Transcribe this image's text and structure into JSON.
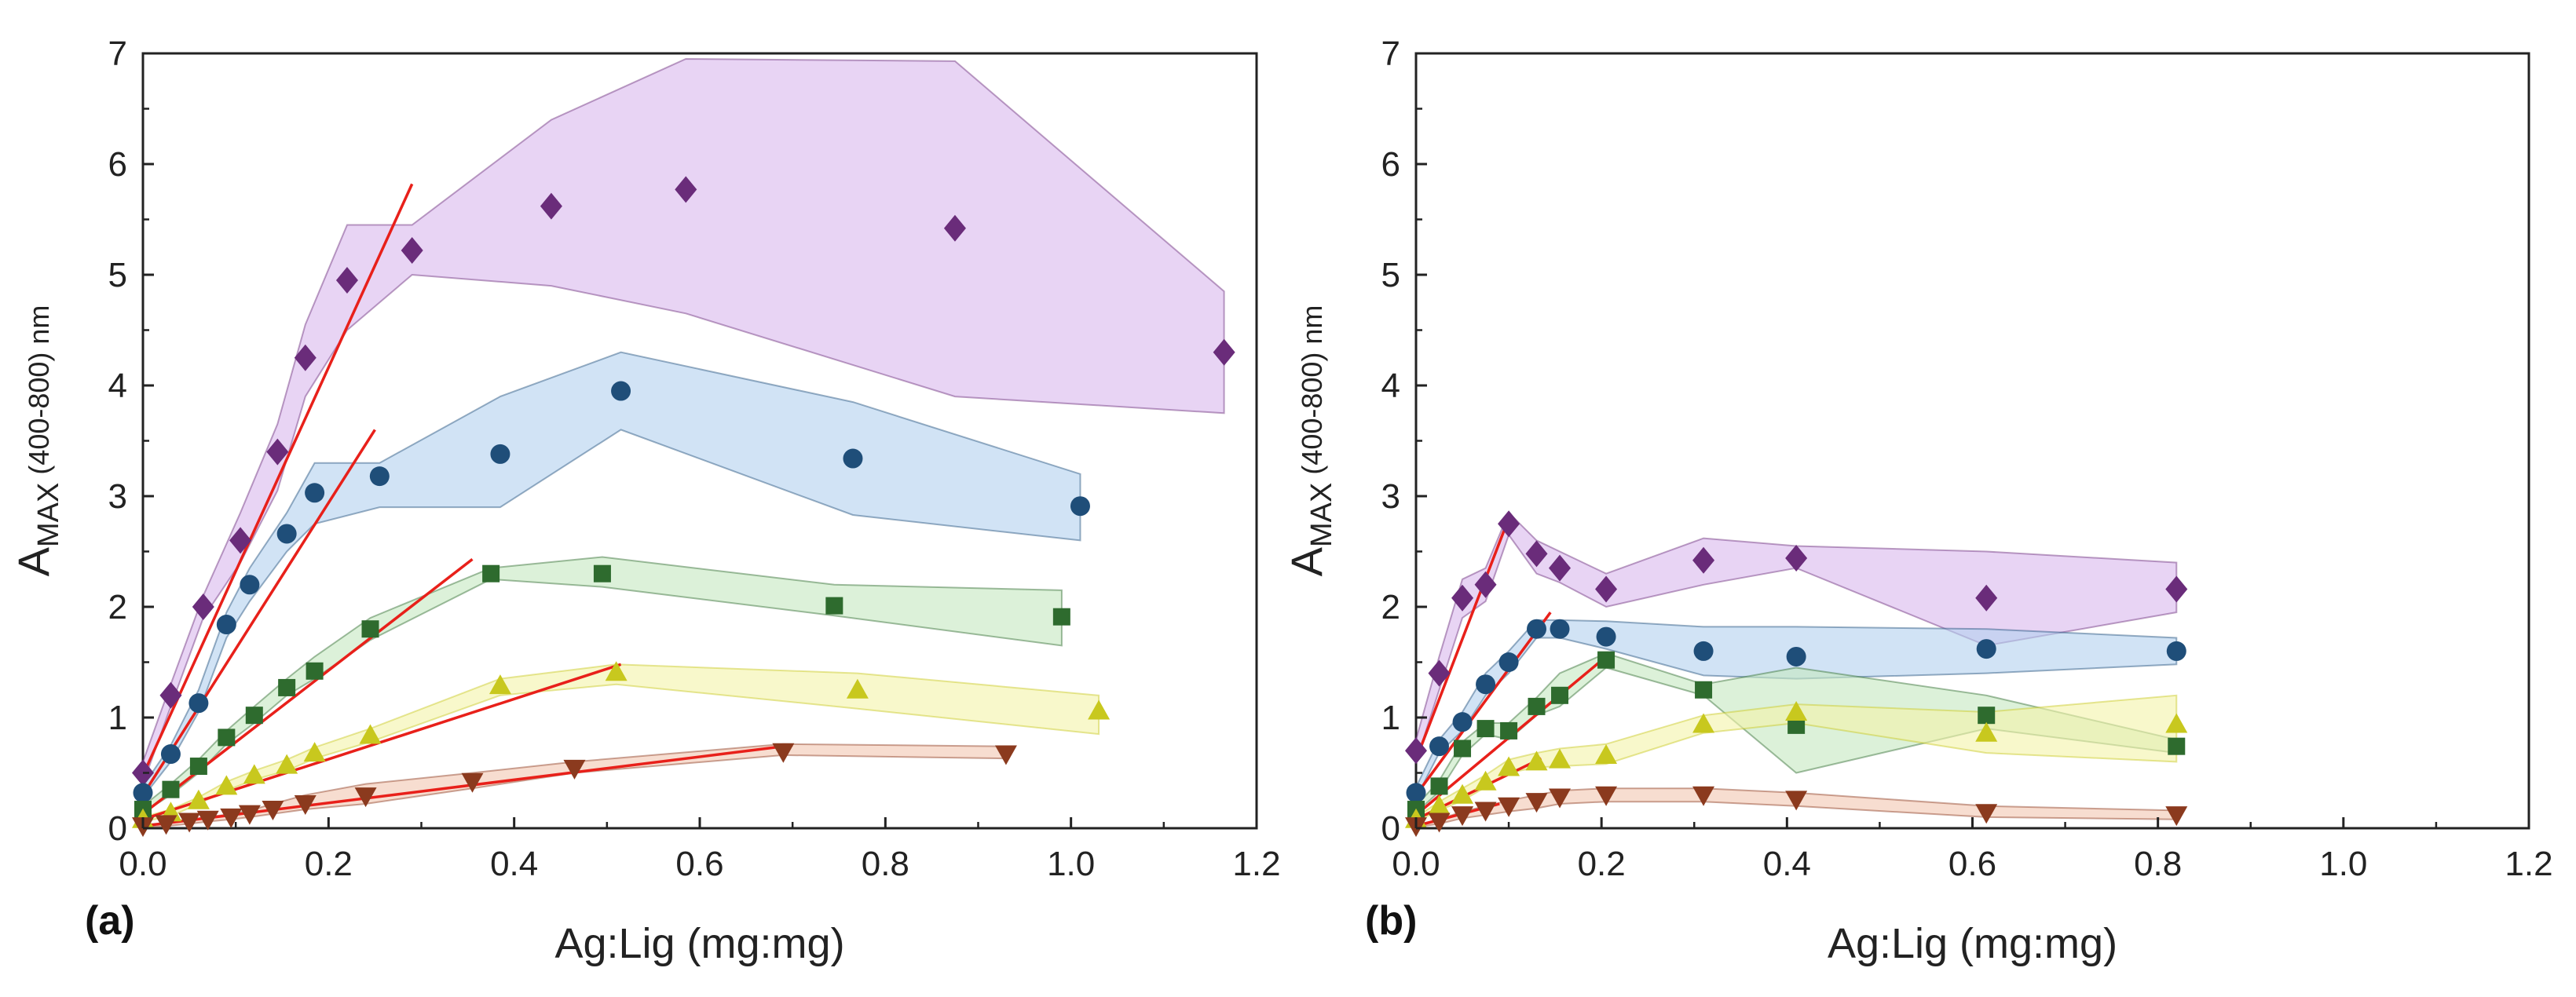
{
  "chart_data": [
    {
      "type": "scatter",
      "panel_label": "(a)",
      "xlabel": "Ag:Lig (mg:mg)",
      "ylabel_main": "A",
      "ylabel_sub": "MAX",
      "ylabel_tail": " (400-800) nm",
      "xlim": [
        0,
        1.2
      ],
      "ylim": [
        0,
        7
      ],
      "xticks": [
        "0.0",
        "0.2",
        "0.4",
        "0.6",
        "0.8",
        "1.0",
        "1.2"
      ],
      "yticks": [
        "0",
        "1",
        "2",
        "3",
        "4",
        "5",
        "6",
        "7"
      ],
      "series": [
        {
          "name": "diamond",
          "marker": "diamond",
          "color": "#6a2c7a",
          "band_color": "#d9b8ec",
          "x": [
            0,
            0.03,
            0.065,
            0.105,
            0.145,
            0.175,
            0.22,
            0.29,
            0.44,
            0.585,
            0.875,
            1.165
          ],
          "y": [
            0.5,
            1.2,
            2.0,
            2.6,
            3.4,
            4.25,
            4.95,
            5.22,
            5.62,
            5.77,
            5.42,
            4.3
          ],
          "band_upper": [
            0.6,
            1.3,
            2.1,
            2.85,
            3.65,
            4.55,
            5.45,
            5.45,
            6.4,
            6.95,
            6.93,
            4.85
          ],
          "band_lower": [
            0.4,
            1.1,
            1.9,
            2.4,
            3.05,
            3.9,
            4.5,
            5.0,
            4.9,
            4.65,
            3.9,
            3.75
          ]
        },
        {
          "name": "circle",
          "marker": "circle",
          "color": "#1f4e79",
          "band_color": "#b3d1ee",
          "x": [
            0,
            0.03,
            0.06,
            0.09,
            0.115,
            0.155,
            0.185,
            0.255,
            0.385,
            0.515,
            0.765,
            1.01
          ],
          "y": [
            0.32,
            0.67,
            1.13,
            1.84,
            2.2,
            2.66,
            3.03,
            3.18,
            3.38,
            3.95,
            3.34,
            2.91
          ],
          "band_upper": [
            0.38,
            0.75,
            1.25,
            1.95,
            2.35,
            2.85,
            3.3,
            3.3,
            3.9,
            4.3,
            3.85,
            3.2
          ],
          "band_lower": [
            0.28,
            0.6,
            1.05,
            1.72,
            2.05,
            2.5,
            2.75,
            2.9,
            2.9,
            3.6,
            2.83,
            2.6
          ]
        },
        {
          "name": "square",
          "marker": "square",
          "color": "#2e6b2e",
          "band_color": "#c5e8bf",
          "x": [
            0,
            0.03,
            0.06,
            0.09,
            0.12,
            0.155,
            0.185,
            0.245,
            0.375,
            0.495,
            0.745,
            0.99
          ],
          "y": [
            0.17,
            0.35,
            0.56,
            0.82,
            1.02,
            1.27,
            1.42,
            1.8,
            2.3,
            2.3,
            2.01,
            1.91
          ],
          "band_upper": [
            0.2,
            0.4,
            0.62,
            0.88,
            1.1,
            1.35,
            1.55,
            1.9,
            2.35,
            2.45,
            2.2,
            2.15
          ],
          "band_lower": [
            0.14,
            0.3,
            0.5,
            0.76,
            0.95,
            1.2,
            1.35,
            1.7,
            2.25,
            2.18,
            1.92,
            1.65
          ]
        },
        {
          "name": "triangle-up",
          "marker": "triangle-up",
          "color": "#c8c81e",
          "band_color": "#f4f4a8",
          "x": [
            0,
            0.03,
            0.06,
            0.09,
            0.12,
            0.155,
            0.185,
            0.245,
            0.385,
            0.51,
            0.77,
            1.03
          ],
          "y": [
            0.08,
            0.14,
            0.25,
            0.38,
            0.48,
            0.57,
            0.68,
            0.84,
            1.29,
            1.41,
            1.25,
            1.06
          ],
          "band_upper": [
            0.1,
            0.17,
            0.28,
            0.42,
            0.52,
            0.62,
            0.73,
            0.9,
            1.35,
            1.48,
            1.4,
            1.2
          ],
          "band_lower": [
            0.06,
            0.11,
            0.22,
            0.34,
            0.44,
            0.52,
            0.63,
            0.78,
            1.2,
            1.3,
            1.08,
            0.85
          ]
        },
        {
          "name": "triangle-down",
          "marker": "triangle-down",
          "color": "#8b3a1e",
          "band_color": "#f2c6b0",
          "x": [
            0,
            0.025,
            0.05,
            0.07,
            0.095,
            0.115,
            0.14,
            0.175,
            0.24,
            0.355,
            0.465,
            0.69,
            0.93
          ],
          "y": [
            0.02,
            0.04,
            0.06,
            0.08,
            0.1,
            0.13,
            0.17,
            0.22,
            0.29,
            0.42,
            0.54,
            0.69,
            0.67
          ],
          "band_upper": [
            0.03,
            0.05,
            0.08,
            0.1,
            0.13,
            0.16,
            0.22,
            0.3,
            0.4,
            0.5,
            0.6,
            0.76,
            0.74
          ],
          "band_lower": [
            0.01,
            0.02,
            0.04,
            0.06,
            0.08,
            0.1,
            0.13,
            0.17,
            0.22,
            0.36,
            0.5,
            0.66,
            0.63
          ]
        }
      ],
      "fit_lines": [
        {
          "x": [
            0,
            0.29
          ],
          "y": [
            0.48,
            5.82
          ]
        },
        {
          "x": [
            0,
            0.25
          ],
          "y": [
            0.3,
            3.6
          ]
        },
        {
          "x": [
            0,
            0.355
          ],
          "y": [
            0.13,
            2.43
          ]
        },
        {
          "x": [
            0,
            0.515
          ],
          "y": [
            0.08,
            1.48
          ]
        },
        {
          "x": [
            0,
            0.7
          ],
          "y": [
            0.02,
            0.75
          ]
        }
      ]
    },
    {
      "type": "scatter",
      "panel_label": "(b)",
      "xlabel": "Ag:Lig (mg:mg)",
      "ylabel_main": "A",
      "ylabel_sub": "MAX",
      "ylabel_tail": " (400-800) nm",
      "xlim": [
        0,
        1.2
      ],
      "ylim": [
        0,
        7
      ],
      "xticks": [
        "0.0",
        "0.2",
        "0.4",
        "0.6",
        "0.8",
        "1.0",
        "1.2"
      ],
      "yticks": [
        "0",
        "1",
        "2",
        "3",
        "4",
        "5",
        "6",
        "7"
      ],
      "series": [
        {
          "name": "diamond",
          "marker": "diamond",
          "color": "#6a2c7a",
          "band_color": "#d9b8ec",
          "x": [
            0,
            0.025,
            0.05,
            0.075,
            0.1,
            0.13,
            0.155,
            0.205,
            0.31,
            0.41,
            0.615,
            0.82
          ],
          "y": [
            0.7,
            1.4,
            2.08,
            2.2,
            2.75,
            2.48,
            2.35,
            2.16,
            2.42,
            2.44,
            2.08,
            2.16
          ],
          "band_upper": [
            0.8,
            1.55,
            2.25,
            2.35,
            2.85,
            2.6,
            2.5,
            2.3,
            2.62,
            2.55,
            2.5,
            2.4
          ],
          "band_lower": [
            0.6,
            1.25,
            1.9,
            2.05,
            2.65,
            2.3,
            2.22,
            2.0,
            2.2,
            2.35,
            1.65,
            1.95
          ]
        },
        {
          "name": "circle",
          "marker": "circle",
          "color": "#1f4e79",
          "band_color": "#b3d1ee",
          "x": [
            0,
            0.025,
            0.05,
            0.075,
            0.1,
            0.13,
            0.155,
            0.205,
            0.31,
            0.41,
            0.615,
            0.82
          ],
          "y": [
            0.32,
            0.74,
            0.96,
            1.3,
            1.5,
            1.8,
            1.8,
            1.73,
            1.6,
            1.55,
            1.62,
            1.6
          ],
          "band_upper": [
            0.37,
            0.8,
            1.05,
            1.4,
            1.6,
            1.88,
            1.88,
            1.87,
            1.82,
            1.82,
            1.8,
            1.72
          ],
          "band_lower": [
            0.27,
            0.68,
            0.88,
            1.2,
            1.4,
            1.72,
            1.72,
            1.62,
            1.38,
            1.35,
            1.4,
            1.48
          ]
        },
        {
          "name": "square",
          "marker": "square",
          "color": "#2e6b2e",
          "band_color": "#c5e8bf",
          "x": [
            0,
            0.025,
            0.05,
            0.075,
            0.1,
            0.13,
            0.155,
            0.205,
            0.31,
            0.41,
            0.615,
            0.82
          ],
          "y": [
            0.17,
            0.38,
            0.72,
            0.9,
            0.88,
            1.1,
            1.2,
            1.52,
            1.25,
            0.93,
            1.02,
            0.74
          ],
          "band_upper": [
            0.2,
            0.43,
            0.78,
            0.95,
            0.95,
            1.18,
            1.4,
            1.58,
            1.3,
            1.45,
            1.2,
            0.8
          ],
          "band_lower": [
            0.14,
            0.33,
            0.66,
            0.85,
            0.8,
            1.02,
            1.1,
            1.45,
            1.2,
            0.5,
            0.9,
            0.68
          ]
        },
        {
          "name": "triangle-up",
          "marker": "triangle-up",
          "color": "#c8c81e",
          "band_color": "#f4f4a8",
          "x": [
            0,
            0.025,
            0.05,
            0.075,
            0.1,
            0.13,
            0.155,
            0.205,
            0.31,
            0.41,
            0.615,
            0.82
          ],
          "y": [
            0.08,
            0.2,
            0.3,
            0.42,
            0.55,
            0.6,
            0.62,
            0.66,
            0.94,
            1.05,
            0.86,
            0.94
          ],
          "band_upper": [
            0.1,
            0.24,
            0.36,
            0.48,
            0.62,
            0.68,
            0.72,
            0.76,
            1.02,
            1.12,
            1.05,
            1.2
          ],
          "band_lower": [
            0.06,
            0.16,
            0.25,
            0.37,
            0.5,
            0.55,
            0.56,
            0.58,
            0.86,
            0.95,
            0.68,
            0.6
          ]
        },
        {
          "name": "triangle-down",
          "marker": "triangle-down",
          "color": "#8b3a1e",
          "band_color": "#f2c6b0",
          "x": [
            0,
            0.025,
            0.05,
            0.075,
            0.1,
            0.13,
            0.155,
            0.205,
            0.31,
            0.41,
            0.615,
            0.82
          ],
          "y": [
            0.02,
            0.06,
            0.12,
            0.16,
            0.2,
            0.24,
            0.28,
            0.3,
            0.3,
            0.26,
            0.14,
            0.12
          ],
          "band_upper": [
            0.03,
            0.08,
            0.15,
            0.2,
            0.25,
            0.3,
            0.34,
            0.36,
            0.36,
            0.32,
            0.2,
            0.16
          ],
          "band_lower": [
            0.01,
            0.04,
            0.09,
            0.12,
            0.15,
            0.18,
            0.22,
            0.24,
            0.24,
            0.2,
            0.1,
            0.08
          ]
        }
      ],
      "fit_lines": [
        {
          "x": [
            0,
            0.1
          ],
          "y": [
            0.62,
            2.8
          ]
        },
        {
          "x": [
            0,
            0.145
          ],
          "y": [
            0.3,
            1.95
          ]
        },
        {
          "x": [
            0,
            0.205
          ],
          "y": [
            0.12,
            1.55
          ]
        },
        {
          "x": [
            0,
            0.135
          ],
          "y": [
            0.08,
            0.63
          ]
        },
        {
          "x": [
            0,
            0.09
          ],
          "y": [
            0.02,
            0.22
          ]
        }
      ]
    }
  ]
}
